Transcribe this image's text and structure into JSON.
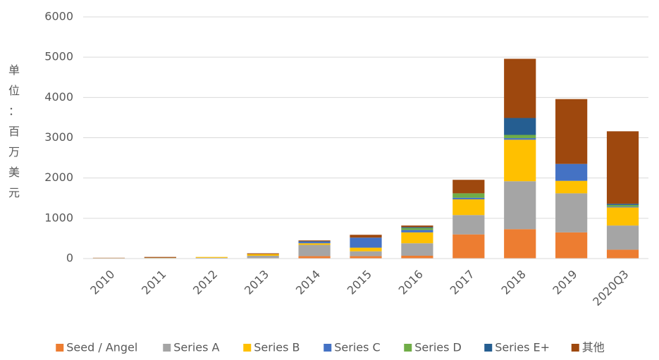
{
  "chart_data": {
    "type": "stacked_bar",
    "y_label": "单位：百万美元",
    "categories": [
      "2010",
      "2011",
      "2012",
      "2013",
      "2014",
      "2015",
      "2016",
      "2017",
      "2018",
      "2019",
      "2020Q3"
    ],
    "series": [
      {
        "name": "Seed / Angel",
        "color": "#ed7d31",
        "values": [
          5,
          5,
          5,
          10,
          60,
          60,
          70,
          600,
          730,
          650,
          220
        ]
      },
      {
        "name": "Series A",
        "color": "#a5a5a5",
        "values": [
          5,
          10,
          15,
          60,
          280,
          120,
          310,
          480,
          1190,
          970,
          600
        ]
      },
      {
        "name": "Series B",
        "color": "#ffc000",
        "values": [
          3,
          5,
          20,
          40,
          40,
          90,
          270,
          390,
          1030,
          310,
          450
        ]
      },
      {
        "name": "Series C",
        "color": "#4472c4",
        "values": [
          0,
          0,
          0,
          0,
          40,
          250,
          60,
          40,
          40,
          420,
          20
        ]
      },
      {
        "name": "Series D",
        "color": "#70ad47",
        "values": [
          0,
          0,
          0,
          0,
          0,
          0,
          50,
          110,
          80,
          0,
          40
        ]
      },
      {
        "name": "Series E+",
        "color": "#255e91",
        "values": [
          0,
          0,
          0,
          0,
          10,
          0,
          20,
          0,
          420,
          0,
          30
        ]
      },
      {
        "name": "其他",
        "color": "#9e480e",
        "values": [
          7,
          20,
          0,
          20,
          20,
          70,
          40,
          335,
          1470,
          1610,
          1800
        ]
      }
    ],
    "ylim": [
      0,
      6000
    ],
    "yticks": [
      0,
      1000,
      2000,
      3000,
      4000,
      5000,
      6000
    ],
    "grid": true
  }
}
